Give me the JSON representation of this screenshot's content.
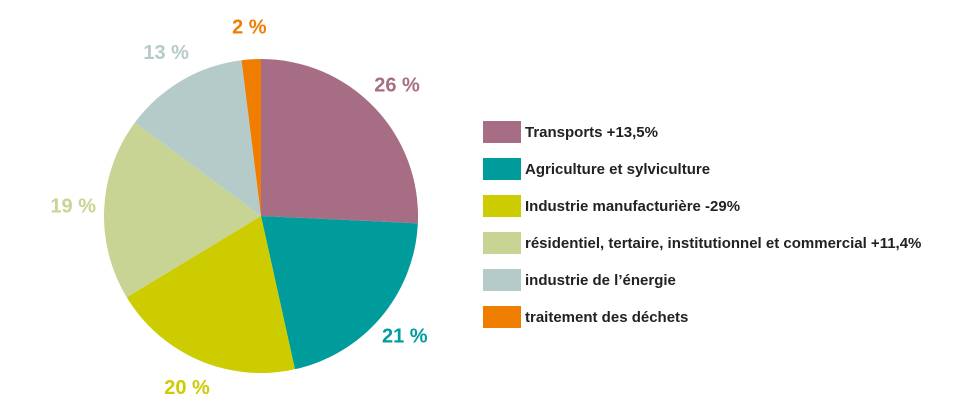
{
  "chart_data": {
    "type": "pie",
    "categories": [
      "Transports +13,5%",
      "Agriculture et sylviculture",
      "Industrie manufacturière -29%",
      "résidentiel, tertaire, institutionnel et commercial +11,4%",
      "industrie de l’énergie",
      "traitement des déchets"
    ],
    "values": [
      26,
      21,
      20,
      19,
      13,
      2
    ],
    "value_labels": [
      "26 %",
      "21 %",
      "20 %",
      "19 %",
      "13 %",
      "2 %"
    ],
    "colors": [
      "#a76d85",
      "#009c9c",
      "#cccc00",
      "#c8d494",
      "#b5cbc9",
      "#ef7d00"
    ],
    "legend": "right"
  }
}
